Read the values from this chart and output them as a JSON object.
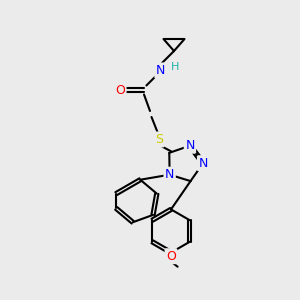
{
  "bg_color": "#ebebeb",
  "atom_colors": {
    "C": "#000000",
    "N": "#0000ff",
    "O": "#ff0000",
    "S": "#cccc00",
    "H": "#20b2aa"
  },
  "bond_color": "#000000",
  "bond_width": 1.5,
  "font_size_atom": 9,
  "fig_size": [
    3.0,
    3.0
  ],
  "dpi": 100
}
